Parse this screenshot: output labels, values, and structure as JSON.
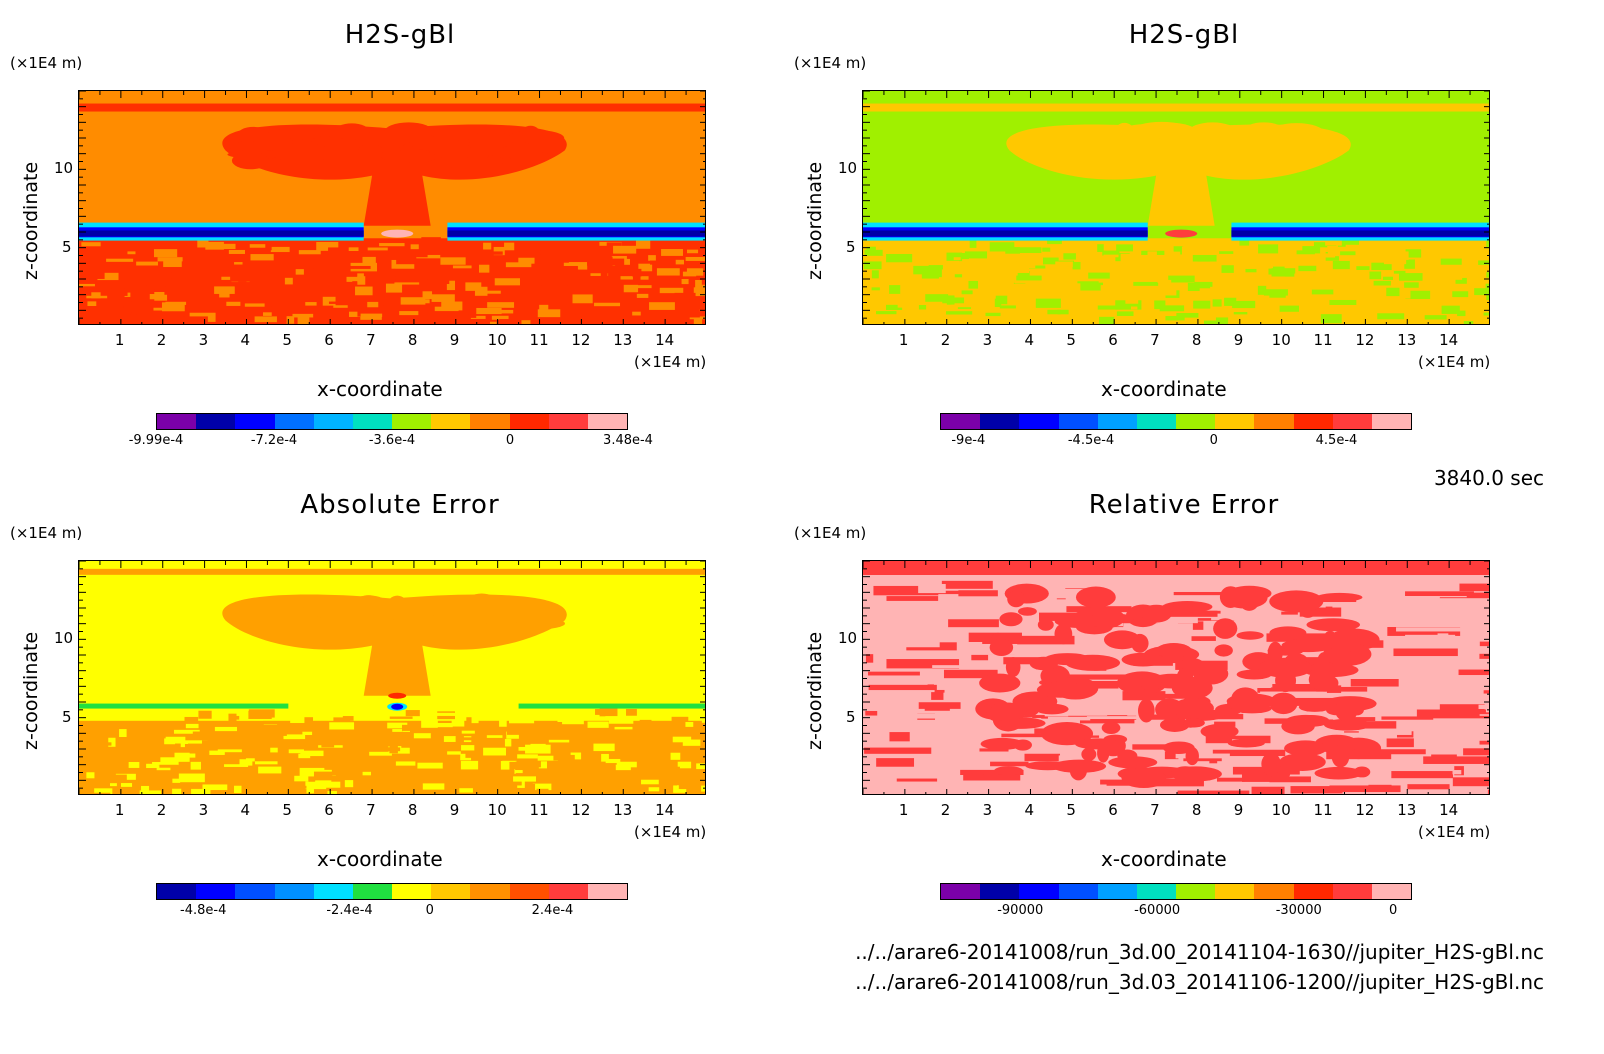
{
  "time_label": "3840.0 sec",
  "file_paths": [
    "../../arare6-20141008/run_3d.00_20141104-1630//jupiter_H2S-gBl.nc",
    "../../arare6-20141008/run_3d.03_20141106-1200//jupiter_H2S-gBl.nc"
  ],
  "axis_unit": "(×1E4 m)",
  "chart_data": [
    {
      "type": "heatmap",
      "title": "H2S-gBl",
      "xlabel": "x-coordinate",
      "ylabel": "z-coordinate",
      "x_ticks": [
        "1",
        "2",
        "3",
        "4",
        "5",
        "6",
        "7",
        "8",
        "9",
        "10",
        "11",
        "12",
        "13",
        "14"
      ],
      "y_ticks": [
        "5",
        "10"
      ],
      "xlim": [
        0,
        15
      ],
      "ylim": [
        0,
        15
      ],
      "colorbar": {
        "colors": [
          "#7b00a8",
          "#0000a8",
          "#0000ff",
          "#0070ff",
          "#00b4ff",
          "#00e0c0",
          "#a0f000",
          "#ffc800",
          "#ff8000",
          "#ff2800",
          "#ff3c3c",
          "#ffb4b4"
        ],
        "labels": [
          "-9.99e-4",
          "-7.2e-4",
          "-3.6e-4",
          "0",
          "3.48e-4"
        ],
        "label_pos": [
          0.0,
          0.25,
          0.5,
          0.75,
          1.0
        ]
      },
      "palette": {
        "bg": "#ff8c00",
        "main": "#ff3000",
        "band_lo": "#0000a8",
        "band_hi": "#00e0ff",
        "core": "#ffb4b4"
      }
    },
    {
      "type": "heatmap",
      "title": "H2S-gBl",
      "xlabel": "x-coordinate",
      "ylabel": "z-coordinate",
      "x_ticks": [
        "1",
        "2",
        "3",
        "4",
        "5",
        "6",
        "7",
        "8",
        "9",
        "10",
        "11",
        "12",
        "13",
        "14"
      ],
      "y_ticks": [
        "5",
        "10"
      ],
      "xlim": [
        0,
        15
      ],
      "ylim": [
        0,
        15
      ],
      "colorbar": {
        "colors": [
          "#7b00a8",
          "#0000a8",
          "#0000ff",
          "#0050ff",
          "#00a0ff",
          "#00e0c0",
          "#a0f000",
          "#ffc800",
          "#ff8000",
          "#ff2800",
          "#ff3c3c",
          "#ffb4b4"
        ],
        "labels": [
          "-9e-4",
          "-4.5e-4",
          "0",
          "4.5e-4"
        ],
        "label_pos": [
          0.06,
          0.32,
          0.58,
          0.84
        ]
      },
      "palette": {
        "bg": "#a0f000",
        "main": "#ffc800",
        "band_lo": "#0000a8",
        "band_hi": "#00e0ff",
        "core": "#ff3c3c"
      }
    },
    {
      "type": "heatmap",
      "title": "Absolute Error",
      "xlabel": "x-coordinate",
      "ylabel": "z-coordinate",
      "x_ticks": [
        "1",
        "2",
        "3",
        "4",
        "5",
        "6",
        "7",
        "8",
        "9",
        "10",
        "11",
        "12",
        "13",
        "14"
      ],
      "y_ticks": [
        "5",
        "10"
      ],
      "xlim": [
        0,
        15
      ],
      "ylim": [
        0,
        15
      ],
      "colorbar": {
        "colors": [
          "#0000a8",
          "#0000ff",
          "#0050ff",
          "#0090ff",
          "#00e0ff",
          "#20e040",
          "#ffff00",
          "#ffc800",
          "#ff9000",
          "#ff5000",
          "#ff3c3c",
          "#ffb4b4"
        ],
        "labels": [
          "-4.8e-4",
          "-2.4e-4",
          "0",
          "2.4e-4"
        ],
        "label_pos": [
          0.1,
          0.41,
          0.58,
          0.84
        ]
      },
      "palette": {
        "bg": "#ffff00",
        "main": "#ffa000",
        "band_lo": "#20e040",
        "band_hi": "#00e0ff",
        "core": "#0000ff"
      }
    },
    {
      "type": "heatmap",
      "title": "Relative Error",
      "xlabel": "x-coordinate",
      "ylabel": "z-coordinate",
      "x_ticks": [
        "1",
        "2",
        "3",
        "4",
        "5",
        "6",
        "7",
        "8",
        "9",
        "10",
        "11",
        "12",
        "13",
        "14"
      ],
      "y_ticks": [
        "5",
        "10"
      ],
      "xlim": [
        0,
        15
      ],
      "ylim": [
        0,
        15
      ],
      "colorbar": {
        "colors": [
          "#7b00a8",
          "#0000a8",
          "#0000ff",
          "#0050ff",
          "#00a0ff",
          "#00e0c0",
          "#a0f000",
          "#ffc800",
          "#ff8000",
          "#ff2800",
          "#ff3c3c",
          "#ffb4b4"
        ],
        "labels": [
          "-90000",
          "-60000",
          "-30000",
          "0"
        ],
        "label_pos": [
          0.17,
          0.46,
          0.76,
          0.96
        ]
      },
      "palette": {
        "bg": "#ffb4b4",
        "main": "#ff3c3c",
        "band_lo": "#ff3c3c",
        "band_hi": "#ff3c3c",
        "core": "#ff3c3c"
      }
    }
  ]
}
